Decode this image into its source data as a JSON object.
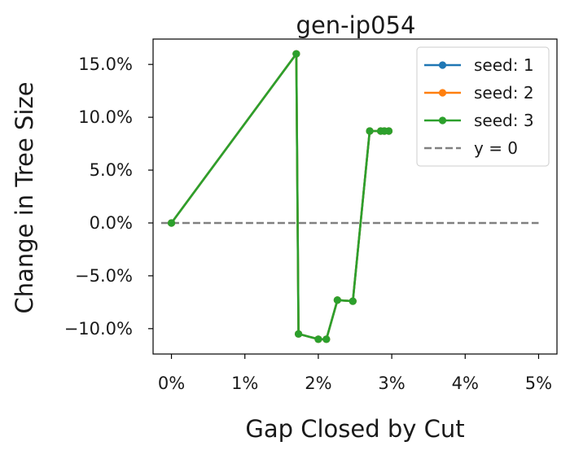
{
  "chart_data": {
    "type": "line",
    "title": "gen-ip054",
    "xlabel": "Gap Closed by Cut",
    "ylabel": "Change in Tree Size",
    "xlim": [
      -0.0025,
      0.0525
    ],
    "ylim": [
      -0.124,
      0.174
    ],
    "x_ticks": [
      0,
      0.01,
      0.02,
      0.03,
      0.04,
      0.05
    ],
    "x_tick_labels": [
      "0%",
      "1%",
      "2%",
      "3%",
      "4%",
      "5%"
    ],
    "y_ticks": [
      0.15,
      0.1,
      0.05,
      0.0,
      -0.05,
      -0.1
    ],
    "y_tick_labels": [
      "15.0%",
      "10.0%",
      "5.0%",
      "0.0%",
      "−5.0%",
      "−10.0%"
    ],
    "grid": false,
    "legend_position": "top-right",
    "reference_line": {
      "label": "y = 0",
      "y": 0.0,
      "color": "#808080",
      "style": "dashed"
    },
    "series": [
      {
        "name": "seed: 1",
        "color": "#1f77b4",
        "x": [
          0.0,
          0.017,
          0.0173,
          0.02,
          0.0211,
          0.0226,
          0.0247,
          0.027,
          0.0285,
          0.029,
          0.0296
        ],
        "y": [
          0.0,
          0.16,
          -0.105,
          -0.11,
          -0.11,
          -0.073,
          -0.074,
          0.087,
          0.087,
          0.087,
          0.087
        ]
      },
      {
        "name": "seed: 2",
        "color": "#ff7f0e",
        "x": [
          0.0,
          0.017,
          0.0173,
          0.02,
          0.0211,
          0.0226,
          0.0247,
          0.027,
          0.0285,
          0.029,
          0.0296
        ],
        "y": [
          0.0,
          0.16,
          -0.105,
          -0.11,
          -0.11,
          -0.073,
          -0.074,
          0.087,
          0.087,
          0.087,
          0.087
        ]
      },
      {
        "name": "seed: 3",
        "color": "#2ca02c",
        "x": [
          0.0,
          0.017,
          0.0173,
          0.02,
          0.0211,
          0.0226,
          0.0247,
          0.027,
          0.0285,
          0.029,
          0.0296
        ],
        "y": [
          0.0,
          0.16,
          -0.105,
          -0.11,
          -0.11,
          -0.073,
          -0.074,
          0.087,
          0.087,
          0.087,
          0.087
        ]
      }
    ]
  }
}
